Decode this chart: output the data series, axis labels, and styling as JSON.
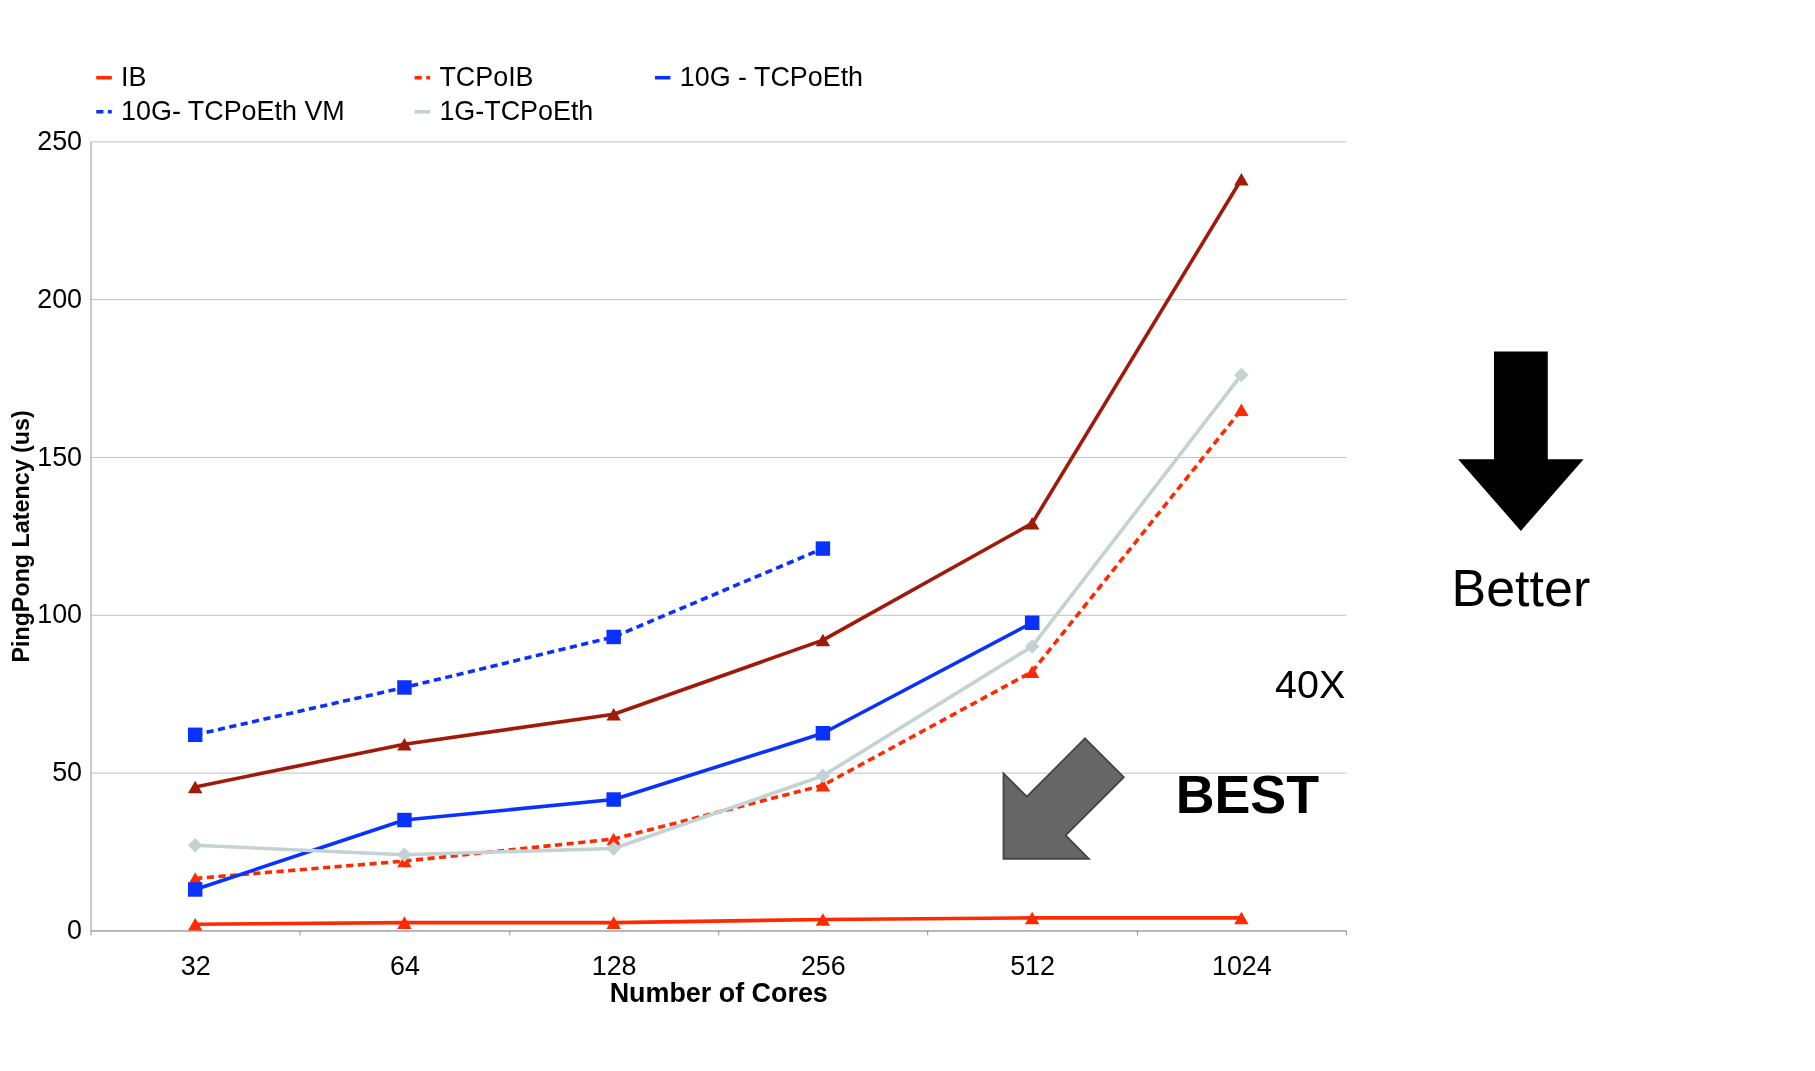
{
  "chart_data": {
    "type": "line",
    "xlabel": "Number of Cores",
    "ylabel": "PingPong Latency (us)",
    "categories": [
      "32",
      "64",
      "128",
      "256",
      "512",
      "1024"
    ],
    "ylim": [
      0,
      250
    ],
    "yticks": [
      0,
      50,
      100,
      150,
      200,
      250
    ],
    "grid": "y",
    "legend": "top",
    "series": [
      {
        "name": "IB",
        "color": "#ff2a00",
        "marker": "triangle",
        "line_style": "solid",
        "values": [
          2,
          2.5,
          2.5,
          3.5,
          4,
          4
        ]
      },
      {
        "name": "TCPoIB",
        "color": "#ff2a00",
        "marker": "triangle",
        "line_style": "dashed",
        "values": [
          16.5,
          22,
          29,
          46,
          82,
          165
        ]
      },
      {
        "name": "10G - TCPoEth",
        "color": "#0a32ff",
        "marker": "square",
        "line_style": "solid",
        "values": [
          13,
          35,
          41.5,
          62.5,
          97.5,
          null
        ]
      },
      {
        "color": "#a01a0a",
        "marker": "triangle",
        "line_style": "solid",
        "values": [
          45.5,
          59,
          68.5,
          92,
          129,
          238
        ]
      },
      {
        "name": "10G-  TCPoEth VM",
        "color": "#0a32ff",
        "marker": "square",
        "line_style": "dashed",
        "values": [
          62,
          77,
          93,
          121,
          null,
          null
        ]
      },
      {
        "name": "1G-TCPoEth",
        "color": "#c3d2d2",
        "marker": "diamond",
        "line_style": "solid",
        "values": [
          27,
          24,
          26,
          49,
          90,
          176
        ]
      }
    ],
    "annotations": [
      "Better",
      "40X",
      "BEST"
    ]
  }
}
